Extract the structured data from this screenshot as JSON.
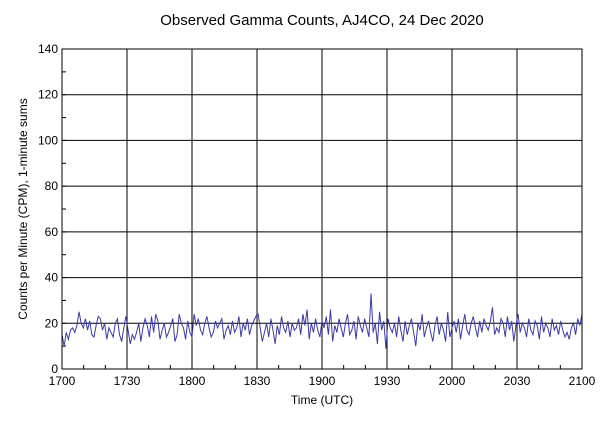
{
  "chart_data": {
    "type": "line",
    "title": "Observed Gamma Counts, AJ4CO, 24 Dec 2020",
    "xlabel": "Time (UTC)",
    "ylabel": "Counts per Minute (CPM), 1-minute sums",
    "xlim": [
      0,
      240
    ],
    "ylim": [
      0,
      140
    ],
    "x_ticks": [
      {
        "x": 0,
        "label": "1700"
      },
      {
        "x": 30,
        "label": "1730"
      },
      {
        "x": 60,
        "label": "1800"
      },
      {
        "x": 90,
        "label": "1830"
      },
      {
        "x": 120,
        "label": "1900"
      },
      {
        "x": 150,
        "label": "1930"
      },
      {
        "x": 180,
        "label": "2000"
      },
      {
        "x": 210,
        "label": "2030"
      },
      {
        "x": 240,
        "label": "2100"
      }
    ],
    "y_ticks": [
      0,
      20,
      40,
      60,
      80,
      100,
      120,
      140
    ],
    "grid": true,
    "colors": {
      "series": "#3a3aa8",
      "grid": "#000000"
    },
    "series": [
      {
        "values": [
          15,
          10,
          16,
          13,
          17,
          18,
          16,
          19,
          25,
          20,
          18,
          22,
          17,
          21,
          15,
          14,
          19,
          23,
          22,
          17,
          20,
          13,
          18,
          16,
          14,
          20,
          22,
          15,
          12,
          18,
          23,
          17,
          11,
          15,
          13,
          16,
          20,
          12,
          18,
          22,
          19,
          14,
          23,
          16,
          24,
          21,
          13,
          17,
          20,
          14,
          16,
          19,
          22,
          12,
          15,
          24,
          20,
          18,
          13,
          21,
          16,
          14,
          24,
          19,
          22,
          17,
          15,
          20,
          23,
          18,
          14,
          16,
          21,
          18,
          20,
          22,
          13,
          17,
          19,
          15,
          21,
          16,
          18,
          23,
          14,
          20,
          17,
          22,
          15,
          19,
          21,
          23,
          24,
          18,
          12,
          16,
          20,
          14,
          22,
          17,
          11,
          19,
          15,
          23,
          18,
          16,
          21,
          14,
          20,
          17,
          18,
          22,
          15,
          24,
          19,
          26,
          13,
          20,
          16,
          22,
          17,
          14,
          21,
          18,
          23,
          15,
          26,
          12,
          19,
          16,
          22,
          18,
          14,
          20,
          24,
          15,
          17,
          21,
          13,
          23,
          19,
          16,
          22,
          18,
          14,
          33,
          16,
          20,
          11,
          25,
          17,
          21,
          9,
          22,
          18,
          16,
          20,
          14,
          23,
          17,
          12,
          21,
          15,
          19,
          22,
          16,
          10,
          20,
          17,
          24,
          14,
          18,
          21,
          16,
          12,
          19,
          23,
          15,
          20,
          17,
          12,
          25,
          14,
          18,
          21,
          16,
          22,
          13,
          19,
          24,
          17,
          15,
          20,
          23,
          18,
          14,
          21,
          16,
          22,
          19,
          17,
          21,
          27,
          15,
          18,
          16,
          22,
          20,
          14,
          23,
          17,
          21,
          12,
          19,
          24,
          16,
          20,
          18,
          14,
          22,
          17,
          15,
          21,
          19,
          13,
          23,
          16,
          20,
          18,
          14,
          22,
          17,
          19,
          15,
          21,
          17,
          14,
          16,
          13,
          18,
          20,
          15,
          22,
          19,
          24
        ]
      }
    ]
  }
}
